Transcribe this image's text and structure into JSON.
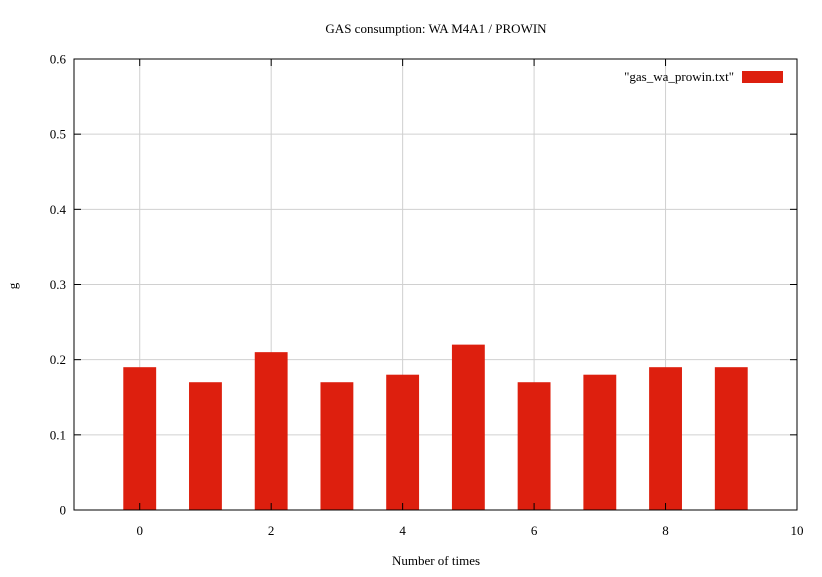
{
  "chart_data": {
    "type": "bar",
    "title": "GAS consumption: WA M4A1 / PROWIN",
    "xlabel": "Number of times",
    "ylabel": "g",
    "xlim": [
      -1,
      10
    ],
    "ylim": [
      0,
      0.6
    ],
    "xticks": [
      "0",
      "2",
      "4",
      "6",
      "8",
      "10"
    ],
    "yticks": [
      "0",
      "0.1",
      "0.2",
      "0.3",
      "0.4",
      "0.5",
      "0.6"
    ],
    "grid": true,
    "legend_position": "top-right",
    "x": [
      0,
      1,
      2,
      3,
      4,
      5,
      6,
      7,
      8,
      9
    ],
    "series": [
      {
        "name": "\"gas_wa_prowin.txt\"",
        "color": "#dd1f0e",
        "values": [
          0.19,
          0.17,
          0.21,
          0.17,
          0.18,
          0.22,
          0.17,
          0.18,
          0.19,
          0.19
        ]
      }
    ]
  }
}
